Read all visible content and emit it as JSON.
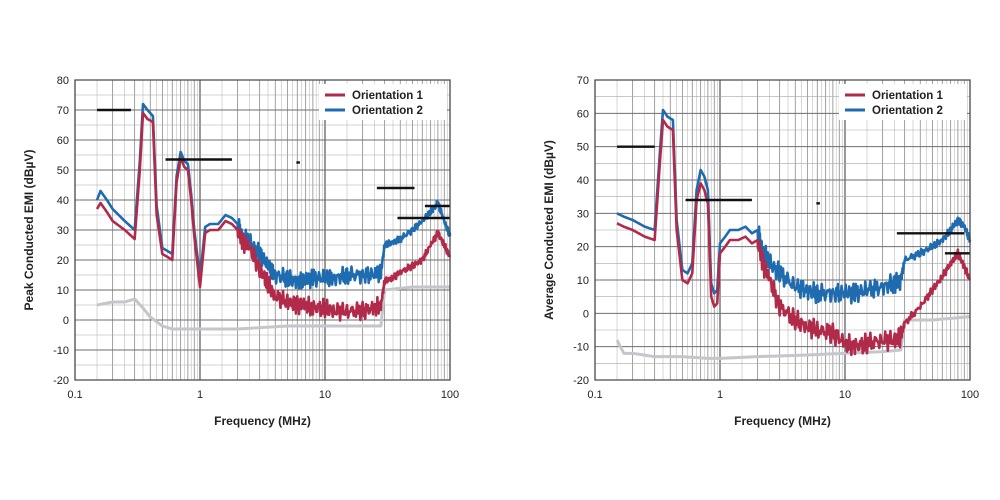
{
  "chart_data": [
    {
      "type": "line",
      "xlabel": "Frequency (MHz)",
      "ylabel": "Peak Conducted EMI (dBµV)",
      "xscale": "log",
      "xlim": [
        0.1,
        100
      ],
      "ylim": [
        -20,
        80
      ],
      "x_ticks": [
        "0.1",
        "1",
        "10",
        "100"
      ],
      "y_ticks": [
        "-20",
        "-10",
        "0",
        "10",
        "20",
        "30",
        "40",
        "50",
        "60",
        "70",
        "80"
      ],
      "grid": true,
      "legend_position": "top-right",
      "series": [
        {
          "name": "Orientation 1",
          "color": "#b22a4a",
          "x": [
            0.15,
            0.16,
            0.18,
            0.2,
            0.25,
            0.3,
            0.33,
            0.35,
            0.38,
            0.42,
            0.45,
            0.5,
            0.55,
            0.6,
            0.65,
            0.7,
            0.75,
            0.8,
            0.85,
            0.9,
            1.0,
            1.1,
            1.2,
            1.4,
            1.6,
            1.8,
            2.0,
            2.2,
            2.5,
            3.0,
            3.5,
            4,
            5,
            6,
            7,
            8,
            10,
            12,
            15,
            20,
            25,
            28,
            30,
            35,
            40,
            50,
            60,
            70,
            80,
            90,
            100
          ],
          "y": [
            37,
            39,
            36,
            33,
            30,
            27,
            50,
            69,
            67,
            66,
            35,
            22,
            21,
            20,
            46,
            54,
            51,
            50,
            40,
            28,
            11,
            29,
            30,
            30,
            33,
            32,
            30,
            26,
            24,
            17,
            12,
            8,
            6,
            5,
            5,
            4,
            4,
            3,
            3,
            3,
            4,
            5,
            13,
            14,
            16,
            18,
            20,
            25,
            29,
            25,
            21
          ]
        },
        {
          "name": "Orientation 2",
          "color": "#1f6bb0",
          "x": [
            0.15,
            0.16,
            0.18,
            0.2,
            0.25,
            0.3,
            0.33,
            0.35,
            0.38,
            0.42,
            0.45,
            0.5,
            0.55,
            0.6,
            0.65,
            0.7,
            0.75,
            0.8,
            0.85,
            0.9,
            1.0,
            1.1,
            1.2,
            1.4,
            1.6,
            1.8,
            2.0,
            2.2,
            2.5,
            3.0,
            3.5,
            4,
            5,
            6,
            7,
            8,
            10,
            12,
            15,
            20,
            25,
            28,
            30,
            35,
            40,
            50,
            60,
            70,
            80,
            90,
            100
          ],
          "y": [
            40,
            43,
            40,
            37,
            33,
            30,
            53,
            72,
            70,
            68,
            38,
            24,
            23,
            22,
            48,
            56,
            53,
            52,
            42,
            30,
            14,
            31,
            32,
            32,
            35,
            34,
            32,
            28,
            26,
            22,
            18,
            15,
            14,
            13,
            13,
            14,
            14,
            14,
            15,
            15,
            15,
            16,
            25,
            26,
            27,
            30,
            33,
            36,
            39,
            33,
            28
          ]
        },
        {
          "name": "",
          "color": "#c4c6cc",
          "x": [
            0.15,
            0.2,
            0.25,
            0.3,
            0.35,
            0.4,
            0.5,
            0.6,
            0.8,
            1,
            2,
            5,
            10,
            20,
            28,
            30,
            50,
            100
          ],
          "y": [
            5,
            6,
            6,
            7,
            4,
            1,
            -2,
            -3,
            -3,
            -3,
            -3,
            -2,
            -2,
            -2,
            -2,
            10,
            11,
            11
          ]
        }
      ],
      "limit_lines": [
        {
          "x": [
            0.15,
            0.28
          ],
          "y": 70
        },
        {
          "x": [
            0.53,
            1.8
          ],
          "y": 53.5
        },
        {
          "x": [
            5.9,
            6.3
          ],
          "y": 52.5
        },
        {
          "x": [
            26,
            52
          ],
          "y": 44
        },
        {
          "x": [
            38,
            100
          ],
          "y": 34
        },
        {
          "x": [
            63,
            100
          ],
          "y": 38
        }
      ]
    },
    {
      "type": "line",
      "xlabel": "Frequency (MHz)",
      "ylabel": "Average Conducted EMI (dBµV)",
      "xscale": "log",
      "xlim": [
        0.1,
        100
      ],
      "ylim": [
        -20,
        70
      ],
      "x_ticks": [
        "0.1",
        "1",
        "10",
        "100"
      ],
      "y_ticks": [
        "-20",
        "-10",
        "0",
        "10",
        "20",
        "30",
        "40",
        "50",
        "60",
        "70"
      ],
      "grid": true,
      "legend_position": "top-right",
      "series": [
        {
          "name": "Orientation 1",
          "color": "#b22a4a",
          "x": [
            0.15,
            0.17,
            0.2,
            0.25,
            0.3,
            0.33,
            0.35,
            0.38,
            0.42,
            0.45,
            0.5,
            0.55,
            0.6,
            0.65,
            0.7,
            0.75,
            0.8,
            0.85,
            0.9,
            0.95,
            1.0,
            1.1,
            1.2,
            1.4,
            1.6,
            1.8,
            2.0,
            2.2,
            2.5,
            3,
            4,
            5,
            6,
            8,
            10,
            12,
            15,
            20,
            25,
            28,
            30,
            40,
            50,
            60,
            70,
            80,
            90,
            100
          ],
          "y": [
            27,
            26,
            25,
            23,
            22,
            45,
            58,
            56,
            55,
            25,
            10,
            9,
            12,
            34,
            39,
            37,
            33,
            5,
            2,
            3,
            18,
            20,
            22,
            22,
            23,
            21,
            22,
            15,
            10,
            2,
            -2,
            -4,
            -5,
            -6,
            -9,
            -10,
            -9,
            -8,
            -8,
            -7,
            -3,
            2,
            7,
            11,
            15,
            18,
            14,
            10
          ]
        },
        {
          "name": "Orientation 2",
          "color": "#1f6bb0",
          "x": [
            0.15,
            0.17,
            0.2,
            0.25,
            0.3,
            0.33,
            0.35,
            0.38,
            0.42,
            0.45,
            0.5,
            0.55,
            0.6,
            0.65,
            0.7,
            0.75,
            0.8,
            0.85,
            0.9,
            0.95,
            1.0,
            1.1,
            1.2,
            1.4,
            1.6,
            1.8,
            2.0,
            2.2,
            2.5,
            3,
            4,
            5,
            6,
            8,
            10,
            12,
            15,
            20,
            25,
            28,
            30,
            40,
            50,
            60,
            70,
            80,
            90,
            100
          ],
          "y": [
            30,
            29,
            28,
            26,
            25,
            48,
            61,
            59,
            58,
            28,
            13,
            12,
            15,
            37,
            43,
            41,
            37,
            9,
            6,
            7,
            21,
            23,
            25,
            25,
            26,
            24,
            25,
            19,
            15,
            12,
            8,
            7,
            6,
            6,
            6,
            6,
            7,
            8,
            9,
            10,
            16,
            18,
            20,
            22,
            25,
            28,
            26,
            22
          ]
        },
        {
          "name": "",
          "color": "#c4c6cc",
          "x": [
            0.15,
            0.17,
            0.2,
            0.3,
            0.5,
            0.8,
            1,
            2,
            5,
            10,
            20,
            28,
            30,
            50,
            100
          ],
          "y": [
            -8,
            -12,
            -12,
            -13,
            -13,
            -13.5,
            -13.5,
            -13,
            -12.5,
            -12,
            -11.5,
            -11,
            -2,
            -2,
            -1
          ]
        }
      ],
      "limit_lines": [
        {
          "x": [
            0.15,
            0.3
          ],
          "y": 50
        },
        {
          "x": [
            0.53,
            1.8
          ],
          "y": 34
        },
        {
          "x": [
            5.9,
            6.3
          ],
          "y": 33
        },
        {
          "x": [
            26,
            90
          ],
          "y": 24
        },
        {
          "x": [
            63,
            100
          ],
          "y": 18
        }
      ]
    }
  ]
}
